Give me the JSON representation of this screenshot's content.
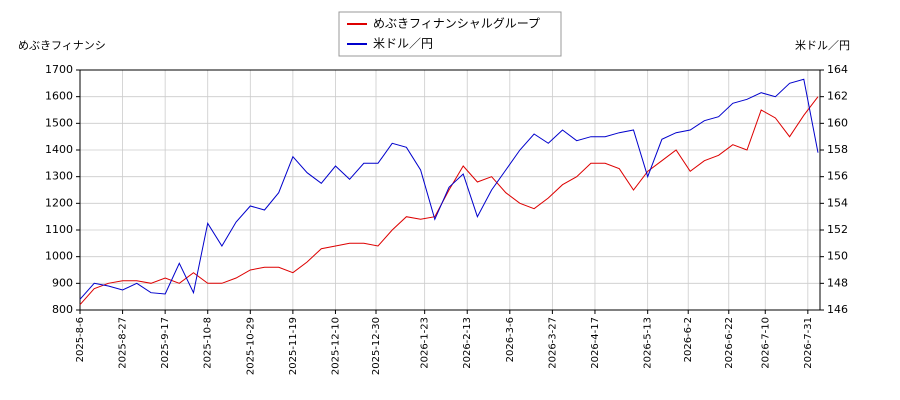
{
  "chart_data": {
    "type": "line",
    "ylabel": "めぶきフィナンシ",
    "y2label": "米ドル／円",
    "legend": "top center",
    "grid": true,
    "xlim": [
      "2025-8-6",
      "2026-8-6"
    ],
    "xticks": [
      "2025-8-6",
      "2025-8-27",
      "2025-9-17",
      "2025-10-8",
      "2025-10-29",
      "2025-11-19",
      "2025-12-10",
      "2025-12-30",
      "2026-1-23",
      "2026-2-13",
      "2026-3-6",
      "2026-3-27",
      "2026-4-17",
      "2026-5-13",
      "2026-6-2",
      "2026-6-22",
      "2026-7-10",
      "2026-7-31"
    ],
    "ylim": [
      800,
      1700
    ],
    "yticks": [
      800,
      900,
      1000,
      1100,
      1200,
      1300,
      1400,
      1500,
      1600,
      1700
    ],
    "y2lim": [
      146,
      164
    ],
    "y2ticks": [
      146,
      148,
      150,
      152,
      154,
      156,
      158,
      160,
      162,
      164
    ],
    "x": [
      "2025-8-6",
      "2025-8-13",
      "2025-8-20",
      "2025-8-27",
      "2025-9-3",
      "2025-9-10",
      "2025-9-17",
      "2025-9-24",
      "2025-10-1",
      "2025-10-8",
      "2025-10-15",
      "2025-10-22",
      "2025-10-29",
      "2025-11-5",
      "2025-11-12",
      "2025-11-19",
      "2025-11-26",
      "2025-12-3",
      "2025-12-10",
      "2025-12-17",
      "2025-12-24",
      "2025-12-31",
      "2026-1-7",
      "2026-1-14",
      "2026-1-21",
      "2026-1-28",
      "2026-2-4",
      "2026-2-11",
      "2026-2-18",
      "2026-2-25",
      "2026-3-4",
      "2026-3-11",
      "2026-3-18",
      "2026-3-25",
      "2026-4-1",
      "2026-4-8",
      "2026-4-15",
      "2026-4-22",
      "2026-4-29",
      "2026-5-6",
      "2026-5-13",
      "2026-5-20",
      "2026-5-27",
      "2026-6-3",
      "2026-6-10",
      "2026-6-17",
      "2026-6-24",
      "2026-7-1",
      "2026-7-8",
      "2026-7-15",
      "2026-7-22",
      "2026-7-29",
      "2026-8-5"
    ],
    "series": [
      {
        "name": "めぶきフィナンシャルグループ",
        "color": "#dd0000",
        "values": [
          820,
          880,
          900,
          910,
          910,
          900,
          920,
          900,
          940,
          900,
          900,
          920,
          950,
          960,
          960,
          940,
          980,
          1030,
          1040,
          1050,
          1050,
          1040,
          1100,
          1150,
          1140,
          1150,
          1250,
          1340,
          1280,
          1300,
          1240,
          1200,
          1180,
          1220,
          1270,
          1300,
          1350,
          1350,
          1330,
          1250,
          1320,
          1360,
          1400,
          1320,
          1360,
          1380,
          1420,
          1400,
          1550,
          1520,
          1450,
          1530,
          1600
        ]
      },
      {
        "name": "米ドル／円",
        "color": "#0000cc",
        "axis": "y2",
        "values": [
          146.8,
          148.0,
          147.8,
          147.5,
          148.0,
          147.3,
          147.2,
          149.5,
          147.3,
          152.5,
          150.8,
          152.6,
          153.8,
          153.5,
          154.8,
          157.5,
          156.3,
          155.5,
          156.8,
          155.8,
          157.0,
          157.0,
          158.5,
          158.2,
          156.5,
          152.8,
          155.2,
          156.2,
          153.0,
          155.0,
          156.5,
          158.0,
          159.2,
          158.5,
          159.5,
          158.7,
          159.0,
          159.0,
          159.3,
          159.5,
          156.0,
          158.8,
          159.3,
          159.5,
          160.2,
          160.5,
          161.5,
          161.8,
          162.3,
          162.0,
          163.0,
          163.3,
          157.8
        ]
      }
    ]
  }
}
